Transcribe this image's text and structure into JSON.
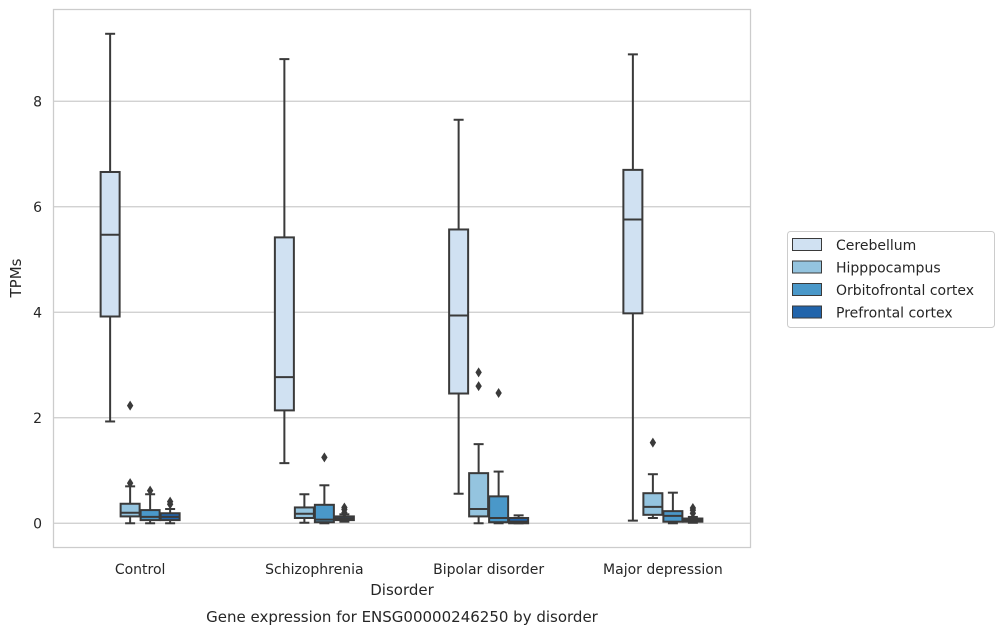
{
  "chart_data": {
    "type": "box",
    "title": "",
    "caption": "Gene expression for ENSG00000246250 by disorder",
    "xlabel": "Disorder",
    "ylabel": "TPMs",
    "ylim": [
      -0.45,
      9.75
    ],
    "yticks": [
      0,
      2,
      4,
      6,
      8
    ],
    "ytick_labels": [
      "0",
      "2",
      "4",
      "6",
      "8"
    ],
    "grid": "horizontal",
    "legend_position": "right",
    "categories": [
      "Control",
      "Schizophrenia",
      "Bipolar disorder",
      "Major depression"
    ],
    "series": [
      {
        "name": "Cerebellum",
        "color": "#d0e1f2",
        "boxes": [
          {
            "whislo": 1.93,
            "q1": 3.92,
            "med": 5.47,
            "q3": 6.66,
            "whishi": 9.28,
            "fliers": []
          },
          {
            "whislo": 1.14,
            "q1": 2.14,
            "med": 2.77,
            "q3": 5.42,
            "whishi": 8.8,
            "fliers": []
          },
          {
            "whislo": 0.56,
            "q1": 2.46,
            "med": 3.94,
            "q3": 5.57,
            "whishi": 7.65,
            "fliers": []
          },
          {
            "whislo": 0.05,
            "q1": 3.98,
            "med": 5.76,
            "q3": 6.7,
            "whishi": 8.89,
            "fliers": []
          }
        ]
      },
      {
        "name": "Hipppocampus",
        "color": "#94c4df",
        "boxes": [
          {
            "whislo": 0.0,
            "q1": 0.13,
            "med": 0.2,
            "q3": 0.37,
            "whishi": 0.7,
            "fliers": [
              0.76,
              2.23
            ]
          },
          {
            "whislo": 0.01,
            "q1": 0.1,
            "med": 0.18,
            "q3": 0.3,
            "whishi": 0.55,
            "fliers": []
          },
          {
            "whislo": 0.0,
            "q1": 0.13,
            "med": 0.27,
            "q3": 0.95,
            "whishi": 1.5,
            "fliers": [
              2.6,
              2.86
            ]
          },
          {
            "whislo": 0.1,
            "q1": 0.16,
            "med": 0.31,
            "q3": 0.57,
            "whishi": 0.93,
            "fliers": [
              1.53
            ]
          }
        ]
      },
      {
        "name": "Orbitofrontal cortex",
        "color": "#4a98c9",
        "boxes": [
          {
            "whislo": 0.0,
            "q1": 0.06,
            "med": 0.12,
            "q3": 0.25,
            "whishi": 0.55,
            "fliers": [
              0.62
            ]
          },
          {
            "whislo": 0.0,
            "q1": 0.02,
            "med": 0.07,
            "q3": 0.35,
            "whishi": 0.72,
            "fliers": [
              1.25
            ]
          },
          {
            "whislo": 0.0,
            "q1": 0.02,
            "med": 0.1,
            "q3": 0.51,
            "whishi": 0.98,
            "fliers": [
              2.47
            ]
          },
          {
            "whislo": 0.0,
            "q1": 0.03,
            "med": 0.14,
            "q3": 0.23,
            "whishi": 0.58,
            "fliers": []
          }
        ]
      },
      {
        "name": "Prefrontal cortex",
        "color": "#2164ab",
        "boxes": [
          {
            "whislo": 0.0,
            "q1": 0.06,
            "med": 0.12,
            "q3": 0.19,
            "whishi": 0.27,
            "fliers": [
              0.36,
              0.41
            ]
          },
          {
            "whislo": 0.03,
            "q1": 0.06,
            "med": 0.09,
            "q3": 0.13,
            "whishi": 0.17,
            "fliers": [
              0.2,
              0.26,
              0.3
            ]
          },
          {
            "whislo": 0.0,
            "q1": 0.0,
            "med": 0.03,
            "q3": 0.1,
            "whishi": 0.15,
            "fliers": []
          },
          {
            "whislo": 0.01,
            "q1": 0.03,
            "med": 0.06,
            "q3": 0.09,
            "whishi": 0.12,
            "fliers": [
              0.19,
              0.25,
              0.29
            ]
          }
        ]
      }
    ]
  }
}
